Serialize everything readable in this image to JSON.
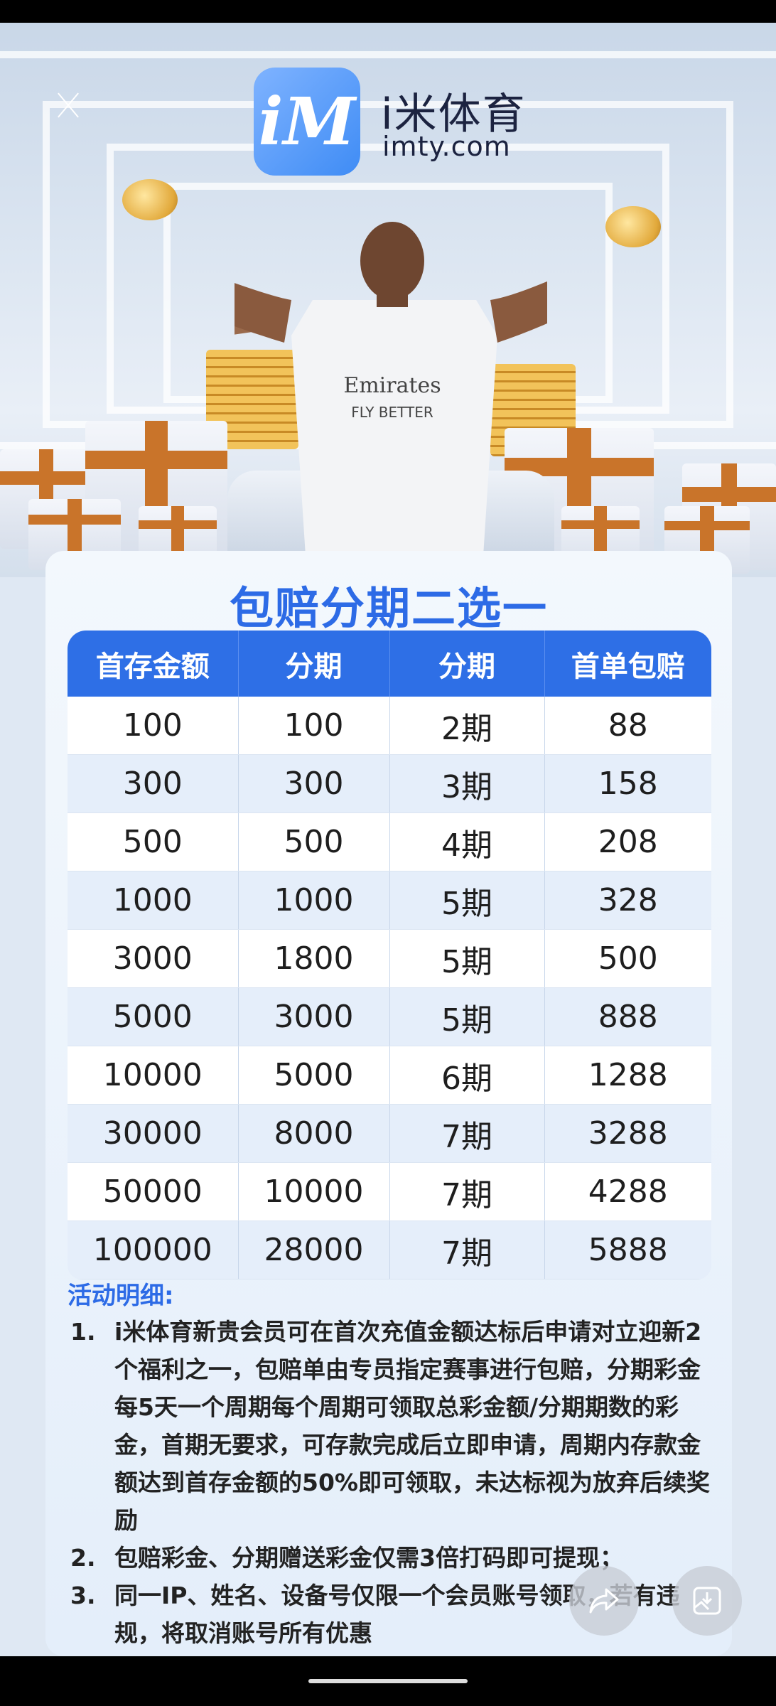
{
  "header": {
    "brand": "i米体育",
    "domain": "imty.com",
    "logo_letters": "iM",
    "close_icon": "close-icon"
  },
  "card": {
    "title": "包赔分期二选一",
    "table": {
      "headers": [
        "首存金额",
        "分期",
        "分期",
        "首单包赔"
      ],
      "rows": [
        [
          "100",
          "100",
          "2期",
          "88"
        ],
        [
          "300",
          "300",
          "3期",
          "158"
        ],
        [
          "500",
          "500",
          "4期",
          "208"
        ],
        [
          "1000",
          "1000",
          "5期",
          "328"
        ],
        [
          "3000",
          "1800",
          "5期",
          "500"
        ],
        [
          "5000",
          "3000",
          "5期",
          "888"
        ],
        [
          "10000",
          "5000",
          "6期",
          "1288"
        ],
        [
          "30000",
          "8000",
          "7期",
          "3288"
        ],
        [
          "50000",
          "10000",
          "7期",
          "4288"
        ],
        [
          "100000",
          "28000",
          "7期",
          "5888"
        ]
      ]
    },
    "details": {
      "heading": "活动明细:",
      "items": [
        {
          "num": "1.",
          "text": "i米体育新贵会员可在首次充值金额达标后申请对立迎新2个福利之一，包赔单由专员指定赛事进行包赔，分期彩金每5天一个周期每个周期可领取总彩金额/分期期数的彩金，首期无要求，可存款完成后立即申请，周期内存款金额达到首存金额的50%即可领取，未达标视为放弃后续奖励"
        },
        {
          "num": "2.",
          "text": "包赔彩金、分期赠送彩金仅需3倍打码即可提现；"
        },
        {
          "num": "3.",
          "text": "同一IP、姓名、设备号仅限一个会员账号领取，若有违规，将取消账号所有优惠"
        }
      ]
    }
  },
  "floating": {
    "share_icon": "share-icon",
    "save_icon": "save-image-icon"
  },
  "colors": {
    "accent": "#2e6fe6",
    "row_alt": "#e5eefa",
    "text": "#1e1e1e"
  }
}
